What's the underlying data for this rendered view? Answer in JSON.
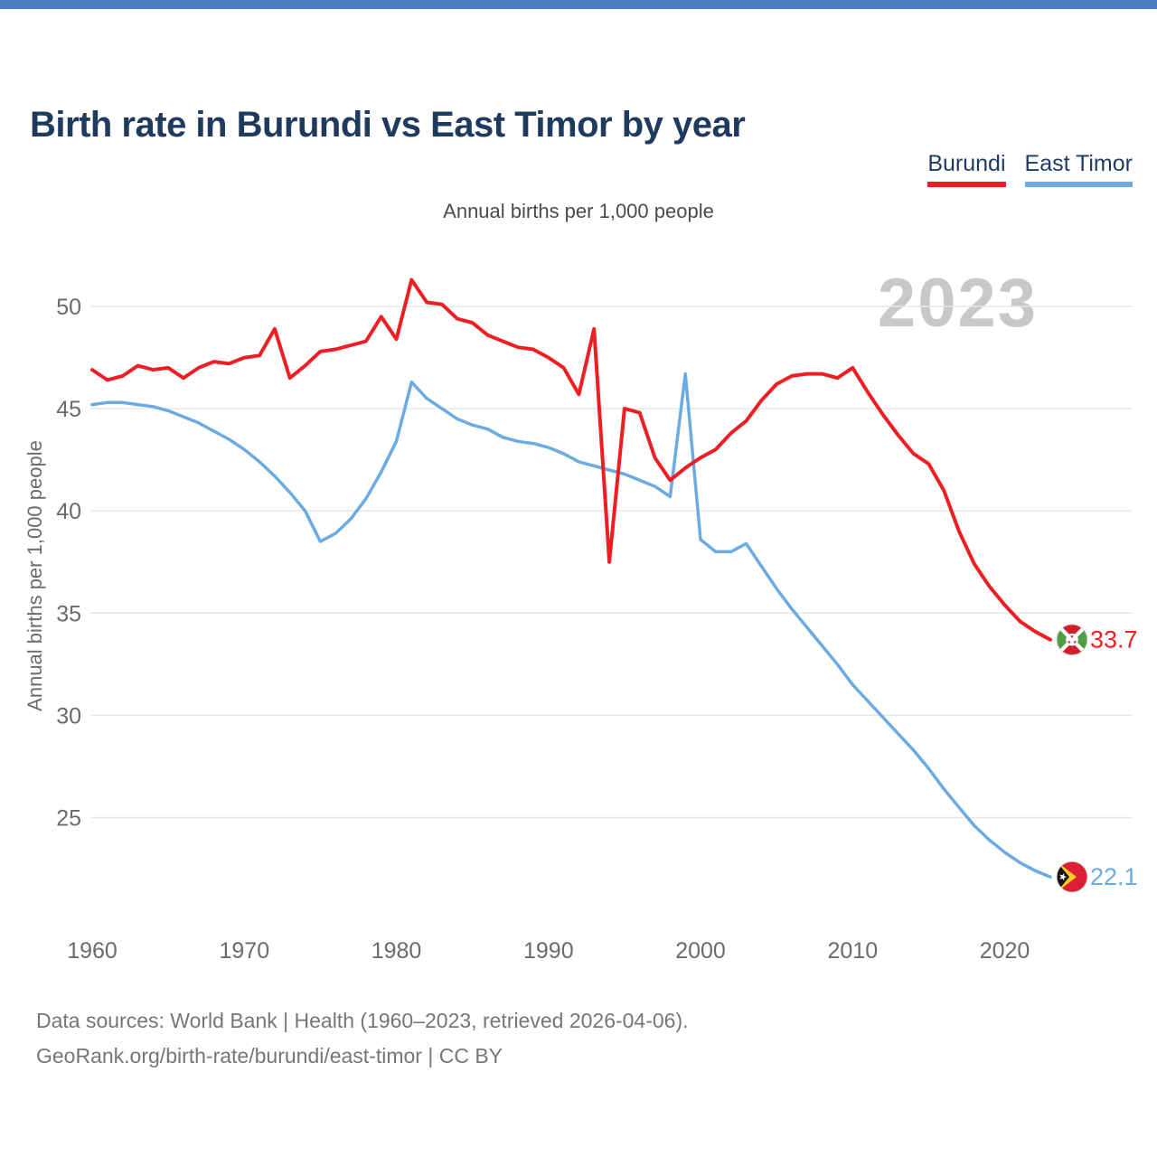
{
  "page": {
    "title": "Birth rate in Burundi vs East Timor by year",
    "subtitle": "Annual births per 1,000 people",
    "watermark_year": "2023",
    "footer_line1": "Data sources: World Bank | Health (1960–2023, retrieved 2026-04-06).",
    "footer_line2": "GeoRank.org/birth-rate/burundi/east-timor | CC BY"
  },
  "legend": {
    "items": [
      {
        "label": "Burundi",
        "color": "#ed1f24"
      },
      {
        "label": "East Timor",
        "color": "#6cabe2"
      }
    ]
  },
  "colors": {
    "burundi_line": "#ed1f24",
    "east_timor_line": "#6cabe2",
    "title_text": "#1e3a5f",
    "topbar": "#4a80c2",
    "gridline": "#e7e7e7",
    "axis_text": "#6b6b6b",
    "watermark": "#c8c8c8"
  },
  "chart_data": {
    "type": "line",
    "title": "Birth rate in Burundi vs East Timor by year",
    "subtitle": "Annual births per 1,000 people",
    "ylabel": "Annual births per 1,000 people",
    "x_start": 1960,
    "x_end": 2023,
    "xticks": [
      1960,
      1970,
      1980,
      1990,
      2000,
      2010,
      2020
    ],
    "yticks": [
      25,
      30,
      35,
      40,
      45,
      50
    ],
    "ylim": [
      21,
      52
    ],
    "grid": "horizontal",
    "legend_position": "top-right",
    "series": [
      {
        "name": "Burundi",
        "color": "#ed1f24",
        "end_label": "33.7",
        "values": [
          46.9,
          46.4,
          46.6,
          47.1,
          46.9,
          47.0,
          46.5,
          47.0,
          47.3,
          47.2,
          47.5,
          47.6,
          48.9,
          46.5,
          47.1,
          47.8,
          47.9,
          48.1,
          48.3,
          49.5,
          48.4,
          51.3,
          50.2,
          50.1,
          49.4,
          49.2,
          48.6,
          48.3,
          48.0,
          47.9,
          47.5,
          47.0,
          45.7,
          48.9,
          37.5,
          45.0,
          44.8,
          42.6,
          41.5,
          42.1,
          42.6,
          43.0,
          43.8,
          44.4,
          45.4,
          46.2,
          46.6,
          46.7,
          46.7,
          46.5,
          47.0,
          45.8,
          44.7,
          43.7,
          42.8,
          42.3,
          41.0,
          39.0,
          37.4,
          36.3,
          35.4,
          34.6,
          34.1,
          33.7
        ]
      },
      {
        "name": "East Timor",
        "color": "#6cabe2",
        "end_label": "22.1",
        "values": [
          45.2,
          45.3,
          45.3,
          45.2,
          45.1,
          44.9,
          44.6,
          44.3,
          43.9,
          43.5,
          43.0,
          42.4,
          41.7,
          40.9,
          40.0,
          38.5,
          38.9,
          39.6,
          40.6,
          41.9,
          43.4,
          46.3,
          45.5,
          45.0,
          44.5,
          44.2,
          44.0,
          43.6,
          43.4,
          43.3,
          43.1,
          42.8,
          42.4,
          42.2,
          42.0,
          41.8,
          41.5,
          41.2,
          40.7,
          46.7,
          38.6,
          38.0,
          38.0,
          38.4,
          37.3,
          36.2,
          35.2,
          34.3,
          33.4,
          32.5,
          31.5,
          30.7,
          29.9,
          29.1,
          28.3,
          27.4,
          26.4,
          25.5,
          24.6,
          23.9,
          23.3,
          22.8,
          22.4,
          22.1
        ]
      }
    ]
  }
}
